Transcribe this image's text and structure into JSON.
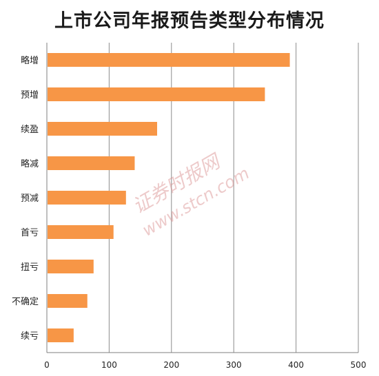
{
  "chart_data": {
    "type": "bar",
    "orientation": "horizontal",
    "title": "上市公司年报预告类型分布情况",
    "categories": [
      "略增",
      "预增",
      "续盈",
      "略减",
      "预减",
      "首亏",
      "扭亏",
      "不确定",
      "续亏"
    ],
    "values": [
      390,
      350,
      177,
      141,
      127,
      107,
      75,
      65,
      43
    ],
    "xlim": [
      0,
      500
    ],
    "xticks": [
      "0",
      "100",
      "200",
      "300",
      "400",
      "500"
    ],
    "grid": true,
    "bar_color": "#F79646"
  },
  "watermark": {
    "line1": "证券时报网",
    "line2": "www.stcn.com"
  }
}
